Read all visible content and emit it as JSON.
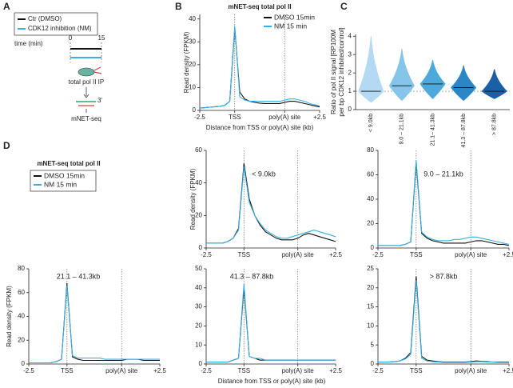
{
  "panel_labels": [
    "A",
    "B",
    "C",
    "D"
  ],
  "schematic": {
    "legend": [
      "Ctr (DMSO)",
      "CDK12 inhibition (NM)"
    ],
    "time_label": "time (min)",
    "time_start": "0",
    "time_end": "15",
    "ip_label": "total pol II IP",
    "primer_label": "3'",
    "readout": "mNET-seq"
  },
  "chart_data": [
    {
      "type": "line",
      "title": "mNET-seq total pol II",
      "x_label": "Distance from TSS or poly(A) site (kb)",
      "y_label": "Read density (FPKM)",
      "categories": [
        "-2.5",
        null,
        null,
        null,
        null,
        null,
        null,
        "TSS",
        null,
        null,
        null,
        null,
        null,
        null,
        null,
        null,
        null,
        "poly(A) site",
        null,
        null,
        null,
        null,
        null,
        null,
        "+2.5"
      ],
      "series": [
        {
          "name": "DMSO 15min",
          "color": "#111111",
          "values": [
            1,
            1.2,
            1.4,
            1.6,
            1.8,
            2.2,
            4,
            36,
            8,
            5,
            4,
            3.5,
            3.2,
            3,
            3,
            3,
            3,
            3.5,
            4,
            4,
            3.5,
            3,
            2.5,
            2,
            1.5
          ]
        },
        {
          "name": "NM 15 min",
          "color": "#3ab0e2",
          "values": [
            1,
            1.2,
            1.4,
            1.6,
            1.8,
            2.2,
            4,
            37,
            6,
            4.5,
            4,
            4,
            4,
            4,
            4,
            4,
            4,
            4.5,
            5,
            5,
            4.5,
            4,
            3,
            2.5,
            2
          ]
        }
      ],
      "ylim": [
        0,
        42
      ],
      "yticks": [
        0,
        10,
        20,
        30,
        40
      ],
      "legend": "upper right"
    },
    {
      "type": "violin",
      "y_label": [
        "Ratio of pol II signal [RP100M",
        "per bp CDK12 inhibited/control]"
      ],
      "categories": [
        "< 9.0kb",
        "9.0 – 21.1kb",
        "21.1– 41.3kb",
        "41.3 – 87.8kb",
        "> 87.8kb"
      ],
      "colors": [
        "#b3daf2",
        "#86c5ea",
        "#4ea9db",
        "#2a86c5",
        "#1c5fa6"
      ],
      "median": [
        1.0,
        1.3,
        1.4,
        1.2,
        1.0
      ],
      "max": [
        4.0,
        3.3,
        2.7,
        2.4,
        2.2
      ],
      "min": [
        0.4,
        0.5,
        0.6,
        0.5,
        0.6
      ],
      "reference_line": 1,
      "ylim": [
        0,
        4.1
      ],
      "yticks": [
        0,
        1,
        2,
        3,
        4
      ]
    },
    {
      "type": "line",
      "annotation": "< 9.0kb",
      "y_label": "Read density (FPKM)",
      "categories": [
        "-2.5",
        null,
        null,
        null,
        null,
        null,
        null,
        "TSS",
        null,
        null,
        null,
        null,
        null,
        null,
        null,
        null,
        null,
        "poly(A) site",
        null,
        null,
        null,
        null,
        null,
        null,
        "+2.5"
      ],
      "series": [
        {
          "color": "#111111",
          "values": [
            3,
            3,
            3,
            3,
            4,
            6,
            12,
            52,
            30,
            20,
            14,
            10,
            8,
            6,
            5,
            5,
            5,
            6,
            8,
            9,
            8,
            7,
            6,
            5,
            4
          ]
        },
        {
          "color": "#3ab0e2",
          "values": [
            3,
            3,
            3,
            3,
            4,
            6,
            11,
            50,
            28,
            20,
            15,
            11,
            9,
            7,
            6,
            6,
            7,
            8,
            9,
            10,
            11,
            10,
            9,
            8,
            7
          ]
        }
      ],
      "ylim": [
        0,
        60
      ],
      "yticks": [
        0,
        20,
        40,
        60
      ]
    },
    {
      "type": "line",
      "annotation": "9.0 –  21.1kb",
      "categories": [
        "-2.5",
        null,
        null,
        null,
        null,
        null,
        null,
        "TSS",
        null,
        null,
        null,
        null,
        null,
        null,
        null,
        null,
        null,
        "poly(A) site",
        null,
        null,
        null,
        null,
        null,
        null,
        "+2.5"
      ],
      "series": [
        {
          "color": "#111111",
          "values": [
            2,
            2,
            2,
            2,
            2,
            3,
            5,
            70,
            12,
            8,
            6,
            5,
            4,
            4,
            4,
            4,
            4,
            5,
            6,
            6,
            5,
            4,
            3,
            3,
            2
          ]
        },
        {
          "color": "#3ab0e2",
          "values": [
            2,
            2,
            2,
            2,
            2,
            3,
            5,
            72,
            13,
            9,
            7,
            6,
            6,
            6,
            7,
            7,
            8,
            9,
            9,
            8,
            7,
            6,
            5,
            4,
            3
          ]
        }
      ],
      "ylim": [
        0,
        80
      ],
      "yticks": [
        0,
        20,
        40,
        60,
        80
      ]
    },
    {
      "type": "line",
      "title": "mNET-seq total pol II",
      "annotation": "21.1 – 41.3kb",
      "y_label": "Read density (FPKM)",
      "categories": [
        "-2.5",
        null,
        null,
        null,
        null,
        null,
        null,
        "TSS",
        null,
        null,
        null,
        null,
        null,
        null,
        null,
        null,
        null,
        "poly(A) site",
        null,
        null,
        null,
        null,
        null,
        null,
        "+2.5"
      ],
      "series": [
        {
          "name": "DMSO 15min",
          "color": "#111111",
          "values": [
            1,
            1,
            1,
            1,
            1,
            2,
            4,
            68,
            6,
            4,
            3,
            3,
            3,
            3,
            3,
            3,
            3,
            3,
            4,
            4,
            4,
            3,
            3,
            3,
            3
          ]
        },
        {
          "name": "NM 15 min",
          "color": "#3ab0e2",
          "values": [
            1,
            1,
            1,
            1,
            1,
            2,
            4,
            66,
            7,
            5,
            5,
            5,
            5,
            5,
            4,
            4,
            4,
            4,
            4,
            4,
            4,
            4,
            4,
            4,
            4
          ]
        }
      ],
      "ylim": [
        0,
        80
      ],
      "yticks": [
        0,
        20,
        40,
        60,
        80
      ],
      "legend": "outside top"
    },
    {
      "type": "line",
      "annotation": "41.3 – 87.8kb",
      "x_label": "Distance from TSS or poly(A) site (kb)",
      "categories": [
        "-2.5",
        null,
        null,
        null,
        null,
        null,
        null,
        "TSS",
        null,
        null,
        null,
        null,
        null,
        null,
        null,
        null,
        null,
        "poly(A) site",
        null,
        null,
        null,
        null,
        null,
        null,
        "+2.5"
      ],
      "series": [
        {
          "color": "#111111",
          "values": [
            1,
            1,
            1,
            1,
            1,
            2,
            3,
            40,
            4,
            3,
            2,
            2,
            2,
            2,
            2,
            2,
            2,
            2,
            2,
            2,
            2,
            2,
            2,
            2,
            2
          ]
        },
        {
          "color": "#3ab0e2",
          "values": [
            1,
            1,
            1,
            1,
            1,
            2,
            3,
            42,
            4,
            3,
            3,
            2,
            2,
            2,
            2,
            2,
            2,
            2,
            2,
            2,
            2,
            2,
            2,
            2,
            2
          ]
        }
      ],
      "ylim": [
        0,
        50
      ],
      "yticks": [
        0,
        10,
        20,
        30,
        40,
        50
      ]
    },
    {
      "type": "line",
      "annotation": "> 87.8kb",
      "categories": [
        "-2.5",
        null,
        null,
        null,
        null,
        null,
        null,
        "TSS",
        null,
        null,
        null,
        null,
        null,
        null,
        null,
        null,
        null,
        "poly(A) site",
        null,
        null,
        null,
        null,
        null,
        null,
        "+2.5"
      ],
      "series": [
        {
          "color": "#111111",
          "values": [
            0.5,
            0.5,
            0.5,
            0.6,
            0.8,
            1.5,
            3,
            23,
            2,
            1,
            0.8,
            0.6,
            0.5,
            0.5,
            0.5,
            0.5,
            0.5,
            0.6,
            0.8,
            0.7,
            0.6,
            0.5,
            0.5,
            0.5,
            0.5
          ]
        },
        {
          "color": "#3ab0e2",
          "values": [
            0.5,
            0.5,
            0.5,
            0.6,
            0.8,
            1.3,
            2.5,
            22,
            1.5,
            0.8,
            0.6,
            0.5,
            0.4,
            0.4,
            0.4,
            0.4,
            0.4,
            0.5,
            0.6,
            0.6,
            0.5,
            0.5,
            0.4,
            0.4,
            0.4
          ]
        }
      ],
      "ylim": [
        0,
        25
      ],
      "yticks": [
        0,
        5,
        10,
        15,
        20,
        25
      ]
    }
  ]
}
